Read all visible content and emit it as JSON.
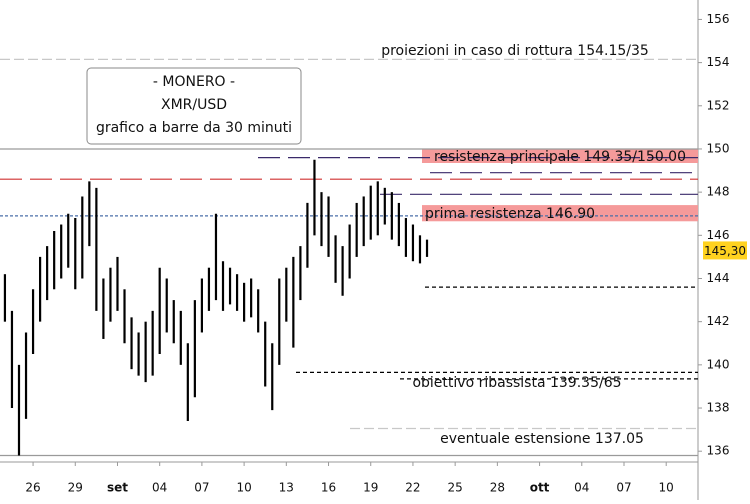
{
  "chart_data": {
    "type": "ohlc",
    "title_box": [
      "- MONERO -",
      "XMR/USD",
      "grafico a barre da 30 minuti"
    ],
    "color": "#000000",
    "x": [
      -2,
      -1.5,
      -1,
      -0.5,
      0,
      0.5,
      1,
      1.5,
      2,
      2.5,
      3,
      3.5,
      4,
      4.5,
      5,
      5.5,
      6,
      6.5,
      7,
      7.5,
      8,
      8.5,
      9,
      9.5,
      10,
      10.5,
      11,
      11.5,
      12,
      12.5,
      13,
      13.5,
      14,
      14.5,
      15,
      15.5,
      16,
      16.5,
      17,
      17.5,
      18,
      18.5,
      19,
      19.5,
      20,
      20.5,
      21,
      21.5,
      22,
      22.5,
      23,
      23.5,
      24,
      24.5,
      25,
      25.5,
      26,
      26.5,
      27,
      27.5,
      28
    ],
    "high": [
      144.2,
      142.5,
      140.0,
      141.5,
      143.5,
      145.0,
      145.5,
      146.2,
      146.5,
      147.0,
      146.8,
      147.8,
      148.5,
      148.2,
      144.0,
      144.5,
      145.0,
      143.5,
      142.2,
      141.5,
      142.0,
      142.5,
      144.5,
      144.0,
      143.0,
      142.5,
      141.0,
      143.0,
      144.0,
      144.5,
      147.0,
      144.8,
      144.5,
      144.2,
      143.8,
      144.0,
      143.5,
      142.0,
      141.0,
      144.0,
      144.5,
      145.0,
      145.5,
      147.5,
      149.5,
      148.0,
      147.8,
      146.0,
      145.5,
      146.5,
      147.5,
      147.8,
      148.3,
      148.5,
      148.2,
      148.0,
      147.5,
      146.8,
      146.5,
      146.0,
      145.8
    ],
    "low": [
      142.0,
      138.0,
      135.8,
      137.5,
      140.5,
      142.0,
      143.0,
      143.5,
      144.0,
      144.5,
      143.5,
      144.0,
      145.5,
      142.5,
      141.2,
      142.0,
      142.5,
      141.0,
      139.8,
      139.5,
      139.2,
      139.5,
      140.5,
      141.5,
      141.0,
      140.0,
      137.4,
      138.5,
      141.5,
      142.5,
      143.0,
      142.5,
      142.8,
      142.5,
      142.0,
      142.2,
      141.5,
      139.0,
      137.9,
      140.0,
      142.0,
      140.8,
      143.0,
      144.5,
      146.0,
      145.5,
      145.0,
      143.8,
      143.2,
      144.0,
      145.0,
      145.5,
      145.8,
      146.0,
      146.5,
      145.8,
      145.5,
      145.0,
      144.8,
      144.7,
      145.0
    ],
    "xlim": [
      -2.35,
      47.26
    ],
    "xticks": [
      {
        "value": 0,
        "label": "26"
      },
      {
        "value": 3,
        "label": "29"
      },
      {
        "value": 6,
        "label": "set"
      },
      {
        "value": 9,
        "label": "04"
      },
      {
        "value": 12,
        "label": "07"
      },
      {
        "value": 15,
        "label": "10"
      },
      {
        "value": 18,
        "label": "13"
      },
      {
        "value": 21,
        "label": "16"
      },
      {
        "value": 24,
        "label": "19"
      },
      {
        "value": 27,
        "label": "22"
      },
      {
        "value": 30,
        "label": "25"
      },
      {
        "value": 33,
        "label": "28"
      },
      {
        "value": 36,
        "label": "ott"
      },
      {
        "value": 39,
        "label": "04"
      },
      {
        "value": 42,
        "label": "07"
      },
      {
        "value": 45,
        "label": "10"
      }
    ],
    "ylim": [
      135.5,
      156.9
    ],
    "yticks": [
      136,
      138,
      140,
      142,
      144,
      146,
      148,
      150,
      152,
      154,
      156
    ],
    "levels": [
      {
        "value": 154.15,
        "color": "#c8c8c8"
      },
      {
        "value": 150,
        "color": "#9a9a9a"
      },
      {
        "value": 149.6,
        "color": "#3a2a6a"
      },
      {
        "value": 148.9,
        "color": "#3a2a6a"
      },
      {
        "value": 148.6,
        "color": "#d03030"
      },
      {
        "value": 147.9,
        "color": "#3a2a6a"
      },
      {
        "value": 146.9,
        "color": "#4a6fa8"
      },
      {
        "value": 143.6,
        "color": "#000000"
      },
      {
        "value": 139.65,
        "color": "#000000"
      },
      {
        "value": 139.35,
        "color": "#000000"
      },
      {
        "value": 137.05,
        "color": "#c8c8c8"
      },
      {
        "value": 135.8,
        "color": "#9a9a9a"
      }
    ],
    "bands": [
      {
        "low": 149.35,
        "high": 150.0,
        "text": "resistenza principale 149.35/150.00",
        "color": "#f59a9a"
      },
      {
        "low": 146.65,
        "high": 147.4,
        "text": "prima resistenza 146.90",
        "color": "#f59a9a"
      }
    ],
    "annotations": [
      "proiezioni in caso di rottura 154.15/35",
      "obiettivo ribassista 139.35/65",
      "eventuale estensione 137.05"
    ],
    "last_price": {
      "value": 145.3,
      "label": "145,30",
      "color": "#ffd21f"
    }
  }
}
